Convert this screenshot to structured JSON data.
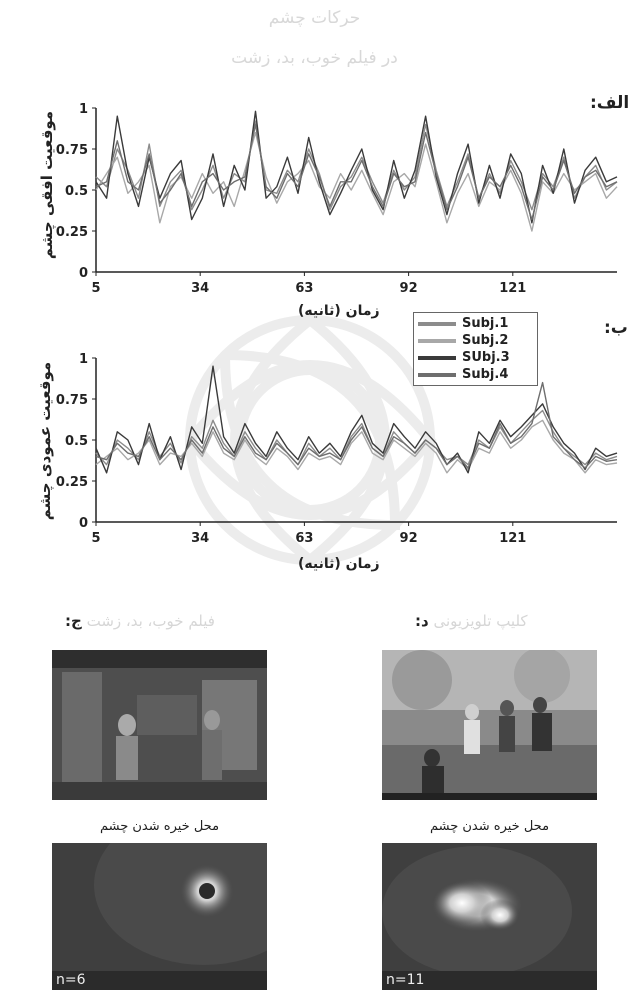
{
  "figure": {
    "title_line1": "حرکات چشم",
    "title_line2": "در فیلم خوب، بد، زشت"
  },
  "panels": {
    "a_letter": "الف:",
    "b_letter": "ب:",
    "c_letter": "ج:",
    "c_heading_faded": "فیلم خوب، بد، زشت",
    "d_letter": "د:",
    "d_heading_faded": "کلیپ تلویزیونی"
  },
  "images": {
    "caption_left": "محل خیره شدن چشم",
    "caption_right": "محل خیره شدن چشم",
    "n_left": "n=6",
    "n_right": "n=11"
  },
  "colors": {
    "subj1": "#8c8c8c",
    "subj2": "#a8a8a8",
    "subj3": "#3a3a3a",
    "subj4": "#6e6e6e"
  },
  "chart_data": [
    {
      "type": "line",
      "ylabel": "موقعیت افقی چشم",
      "xlabel": "زمان (ثانیه)",
      "ylim": [
        0,
        1
      ],
      "yticks": [
        "0",
        "0.25",
        "0.5",
        "0.75",
        "1"
      ],
      "xticks": [
        "5",
        "34",
        "63",
        "92",
        "121"
      ],
      "x_range": [
        5,
        150
      ],
      "series": [
        {
          "name": "Subj.1",
          "values": [
            0.58,
            0.52,
            0.75,
            0.62,
            0.45,
            0.78,
            0.4,
            0.55,
            0.62,
            0.38,
            0.5,
            0.65,
            0.45,
            0.6,
            0.55,
            0.92,
            0.5,
            0.48,
            0.62,
            0.55,
            0.75,
            0.6,
            0.38,
            0.52,
            0.58,
            0.7,
            0.55,
            0.42,
            0.62,
            0.5,
            0.58,
            0.9,
            0.62,
            0.4,
            0.55,
            0.72,
            0.45,
            0.6,
            0.48,
            0.68,
            0.55,
            0.38,
            0.6,
            0.52,
            0.7,
            0.45,
            0.58,
            0.65,
            0.5,
            0.55
          ]
        },
        {
          "name": "Subj.2",
          "values": [
            0.5,
            0.6,
            0.7,
            0.48,
            0.55,
            0.65,
            0.3,
            0.52,
            0.58,
            0.45,
            0.6,
            0.48,
            0.55,
            0.4,
            0.62,
            0.85,
            0.58,
            0.42,
            0.55,
            0.6,
            0.68,
            0.52,
            0.45,
            0.6,
            0.5,
            0.62,
            0.48,
            0.35,
            0.55,
            0.6,
            0.52,
            0.78,
            0.55,
            0.3,
            0.48,
            0.6,
            0.4,
            0.55,
            0.5,
            0.62,
            0.48,
            0.25,
            0.55,
            0.48,
            0.6,
            0.5,
            0.55,
            0.6,
            0.45,
            0.52
          ]
        },
        {
          "name": "SUbj.3",
          "values": [
            0.55,
            0.45,
            0.95,
            0.6,
            0.4,
            0.7,
            0.45,
            0.6,
            0.68,
            0.32,
            0.45,
            0.72,
            0.4,
            0.65,
            0.5,
            0.98,
            0.45,
            0.52,
            0.7,
            0.48,
            0.82,
            0.55,
            0.35,
            0.48,
            0.62,
            0.75,
            0.5,
            0.38,
            0.68,
            0.45,
            0.62,
            0.95,
            0.58,
            0.35,
            0.6,
            0.78,
            0.42,
            0.65,
            0.45,
            0.72,
            0.6,
            0.3,
            0.65,
            0.48,
            0.75,
            0.42,
            0.62,
            0.7,
            0.55,
            0.58
          ]
        },
        {
          "name": "Subj.4",
          "values": [
            0.52,
            0.55,
            0.8,
            0.55,
            0.5,
            0.72,
            0.42,
            0.5,
            0.6,
            0.4,
            0.55,
            0.6,
            0.5,
            0.55,
            0.58,
            0.9,
            0.52,
            0.45,
            0.6,
            0.52,
            0.72,
            0.58,
            0.4,
            0.55,
            0.55,
            0.68,
            0.52,
            0.4,
            0.6,
            0.52,
            0.55,
            0.85,
            0.6,
            0.38,
            0.52,
            0.7,
            0.45,
            0.58,
            0.52,
            0.65,
            0.52,
            0.32,
            0.58,
            0.5,
            0.68,
            0.48,
            0.58,
            0.62,
            0.52,
            0.55
          ]
        }
      ]
    },
    {
      "type": "line",
      "ylabel": "موقعیت عمودی چشم",
      "xlabel": "زمان (ثانیه)",
      "ylim": [
        0,
        1
      ],
      "yticks": [
        "0",
        "0.25",
        "0.5",
        "0.75",
        "1"
      ],
      "xticks": [
        "5",
        "34",
        "63",
        "92",
        "121"
      ],
      "x_range": [
        5,
        150
      ],
      "series": [
        {
          "name": "Subj.1",
          "values": [
            0.42,
            0.35,
            0.5,
            0.45,
            0.38,
            0.55,
            0.4,
            0.48,
            0.36,
            0.52,
            0.45,
            0.62,
            0.48,
            0.4,
            0.55,
            0.45,
            0.38,
            0.5,
            0.42,
            0.35,
            0.48,
            0.4,
            0.45,
            0.38,
            0.52,
            0.6,
            0.45,
            0.4,
            0.55,
            0.48,
            0.42,
            0.5,
            0.45,
            0.38,
            0.4,
            0.35,
            0.5,
            0.45,
            0.58,
            0.48,
            0.55,
            0.62,
            0.68,
            0.55,
            0.45,
            0.4,
            0.35,
            0.42,
            0.38,
            0.4
          ]
        },
        {
          "name": "Subj.2",
          "values": [
            0.35,
            0.4,
            0.45,
            0.38,
            0.42,
            0.5,
            0.35,
            0.42,
            0.4,
            0.48,
            0.4,
            0.55,
            0.42,
            0.38,
            0.5,
            0.4,
            0.35,
            0.45,
            0.4,
            0.32,
            0.42,
            0.38,
            0.4,
            0.35,
            0.48,
            0.55,
            0.42,
            0.38,
            0.5,
            0.45,
            0.4,
            0.48,
            0.42,
            0.3,
            0.38,
            0.32,
            0.45,
            0.42,
            0.55,
            0.45,
            0.5,
            0.58,
            0.62,
            0.5,
            0.42,
            0.38,
            0.3,
            0.38,
            0.35,
            0.36
          ]
        },
        {
          "name": "SUbj.3",
          "values": [
            0.45,
            0.3,
            0.55,
            0.5,
            0.35,
            0.6,
            0.38,
            0.52,
            0.32,
            0.58,
            0.48,
            0.95,
            0.52,
            0.42,
            0.6,
            0.48,
            0.4,
            0.55,
            0.45,
            0.38,
            0.52,
            0.42,
            0.48,
            0.4,
            0.55,
            0.65,
            0.48,
            0.42,
            0.6,
            0.52,
            0.45,
            0.55,
            0.48,
            0.35,
            0.42,
            0.3,
            0.55,
            0.48,
            0.62,
            0.52,
            0.58,
            0.65,
            0.72,
            0.58,
            0.48,
            0.42,
            0.32,
            0.45,
            0.4,
            0.42
          ]
        },
        {
          "name": "Subj.4",
          "values": [
            0.4,
            0.38,
            0.48,
            0.42,
            0.4,
            0.52,
            0.38,
            0.45,
            0.38,
            0.5,
            0.42,
            0.58,
            0.45,
            0.4,
            0.52,
            0.42,
            0.38,
            0.48,
            0.42,
            0.35,
            0.45,
            0.4,
            0.42,
            0.38,
            0.5,
            0.58,
            0.45,
            0.4,
            0.52,
            0.48,
            0.42,
            0.5,
            0.45,
            0.35,
            0.4,
            0.33,
            0.48,
            0.45,
            0.6,
            0.48,
            0.52,
            0.6,
            0.85,
            0.52,
            0.45,
            0.38,
            0.33,
            0.4,
            0.37,
            0.38
          ]
        }
      ]
    }
  ]
}
